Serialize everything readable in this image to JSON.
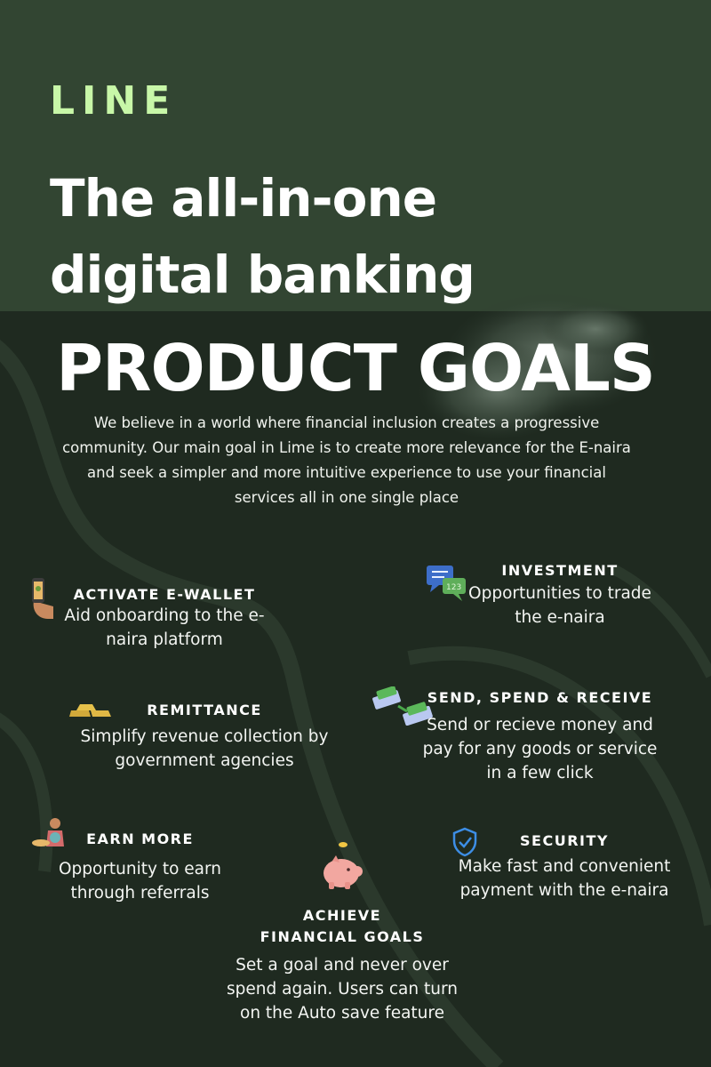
{
  "brand": {
    "name": "LINE"
  },
  "headline": {
    "line1": "The all-in-one",
    "line2": "digital banking"
  },
  "section_title": "PRODUCT GOALS",
  "intro": "We believe in a world where financial inclusion creates a progressive community. Our main goal in Lime is to create more relevance for the E-naira and seek a simpler and more intuitive experience to use your financial services all in one single place",
  "colors": {
    "top_band": "#324532",
    "background": "#1f2a20",
    "brand_accent": "#c8f7a8",
    "text": "#ffffff"
  },
  "features": {
    "activate": {
      "title": "ACTIVATE E-WALLET",
      "desc": "Aid onboarding to the e-naira platform",
      "icon": "phone-hand-icon"
    },
    "investment": {
      "title": "INVESTMENT",
      "desc": "Opportunities to trade the e-naira",
      "icon": "chat-bubbles-icon"
    },
    "remittance": {
      "title": "REMITTANCE",
      "desc": "Simplify revenue collection by government agencies",
      "icon": "gold-bars-icon"
    },
    "send": {
      "title": "SEND, SPEND & RECEIVE",
      "desc": "Send or recieve money and pay for any goods or service in a few click",
      "icon": "money-transfer-icon"
    },
    "earn": {
      "title": "EARN MORE",
      "desc": "Opportunity to earn through referrals",
      "icon": "person-with-coin-icon"
    },
    "security": {
      "title": "SECURITY",
      "desc": "Make fast and convenient payment with the e-naira",
      "icon": "shield-check-icon"
    },
    "goals": {
      "title_line1": "ACHIEVE",
      "title_line2": "FINANCIAL GOALS",
      "desc": "Set a goal and never over spend again. Users can turn on the Auto save feature",
      "icon": "piggy-bank-icon"
    }
  }
}
